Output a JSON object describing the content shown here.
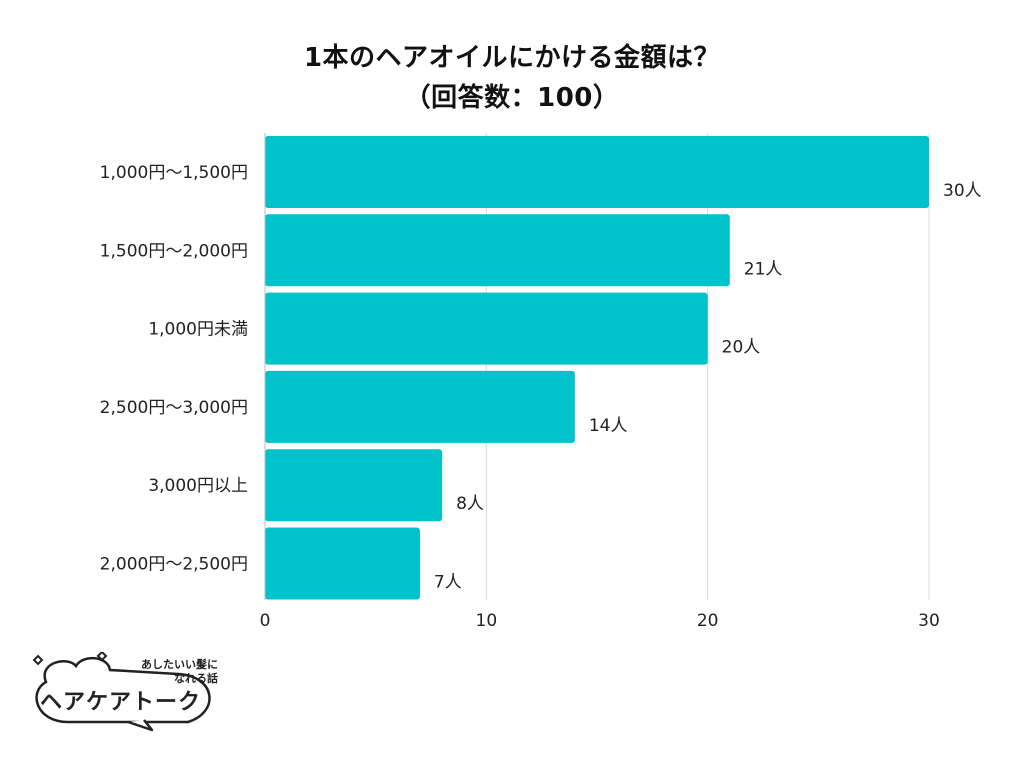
{
  "title": {
    "line1": "1本のヘアオイルにかける金額は？",
    "line2": "（回答数：100）"
  },
  "colors": {
    "bar": "#00c2cb",
    "grid": "#d9d9d9",
    "text": "#222222"
  },
  "chart_data": {
    "type": "bar",
    "orientation": "horizontal",
    "title": "1本のヘアオイルにかける金額は？（回答数：100）",
    "categories": [
      "1,000円〜1,500円",
      "1,500円〜2,000円",
      "1,000円未満",
      "2,500円〜3,000円",
      "3,000円以上",
      "2,000円〜2,500円"
    ],
    "values": [
      30,
      21,
      20,
      14,
      8,
      7
    ],
    "value_labels": [
      "30人",
      "21人",
      "20人",
      "14人",
      "8人",
      "7人"
    ],
    "xlim": [
      0,
      30
    ],
    "xticks": [
      0,
      10,
      20,
      30
    ],
    "xtick_labels": [
      "0",
      "10",
      "20",
      "30"
    ],
    "grid": true
  },
  "logo": {
    "tagline_1": "あしたいい髪に",
    "tagline_2": "なれる話",
    "name": "ヘアケアトーク"
  }
}
